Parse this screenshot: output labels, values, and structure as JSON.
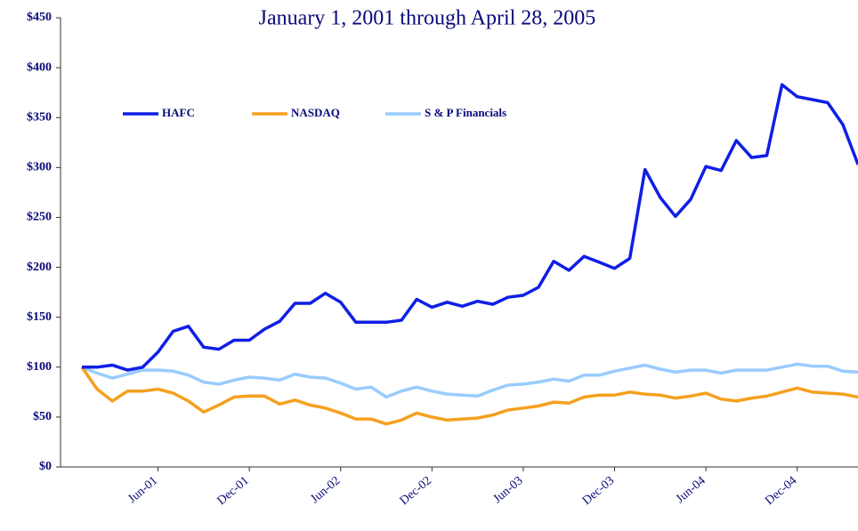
{
  "chart_data": {
    "type": "line",
    "title": "January 1, 2001 through April 28, 2005",
    "categories": [
      null,
      null,
      null,
      null,
      null,
      "Jun-01",
      null,
      null,
      null,
      null,
      null,
      "Dec-01",
      null,
      null,
      null,
      null,
      null,
      "Jun-02",
      null,
      null,
      null,
      null,
      null,
      "Dec-02",
      null,
      null,
      null,
      null,
      null,
      "Jun-03",
      null,
      null,
      null,
      null,
      null,
      "Dec-03",
      null,
      null,
      null,
      null,
      null,
      "Jun-04",
      null,
      null,
      null,
      null,
      null,
      "Dec-04",
      null,
      null,
      null,
      null
    ],
    "series": [
      {
        "name": "HAFC",
        "color": "#0f1ee6",
        "values": [
          100,
          100,
          102,
          97,
          100,
          115,
          136,
          141,
          120,
          118,
          127,
          127,
          138,
          146,
          164,
          164,
          174,
          165,
          145,
          145,
          145,
          147,
          168,
          160,
          165,
          161,
          166,
          163,
          170,
          172,
          180,
          206,
          197,
          211,
          205,
          199,
          209,
          298,
          270,
          251,
          268,
          301,
          297,
          327,
          310,
          312,
          383,
          371,
          368,
          365,
          343,
          303
        ]
      },
      {
        "name": "NASDAQ",
        "color": "#f5a01e",
        "values": [
          100,
          78,
          66,
          76,
          76,
          78,
          74,
          66,
          55,
          62,
          70,
          71,
          71,
          63,
          67,
          62,
          59,
          54,
          48,
          48,
          43,
          47,
          54,
          50,
          47,
          48,
          49,
          52,
          57,
          59,
          61,
          65,
          64,
          70,
          72,
          72,
          75,
          73,
          72,
          69,
          71,
          74,
          68,
          66,
          69,
          71,
          75,
          79,
          75,
          74,
          73,
          70
        ]
      },
      {
        "name": "S & P Financials",
        "color": "#99ccff",
        "values": [
          100,
          94,
          89,
          93,
          97,
          97,
          96,
          92,
          85,
          83,
          87,
          90,
          89,
          87,
          93,
          90,
          89,
          84,
          78,
          80,
          70,
          76,
          80,
          76,
          73,
          72,
          71,
          77,
          82,
          83,
          85,
          88,
          86,
          92,
          92,
          96,
          99,
          102,
          98,
          95,
          97,
          97,
          94,
          97,
          97,
          97,
          100,
          103,
          101,
          101,
          96,
          95
        ]
      }
    ],
    "ylim": [
      0,
      450
    ],
    "yticks": [
      {
        "value": 0,
        "label": "$0"
      },
      {
        "value": 50,
        "label": "$50"
      },
      {
        "value": 100,
        "label": "$100"
      },
      {
        "value": 150,
        "label": "$150"
      },
      {
        "value": 200,
        "label": "$200"
      },
      {
        "value": 250,
        "label": "$250"
      },
      {
        "value": 300,
        "label": "$300"
      },
      {
        "value": 350,
        "label": "$350"
      },
      {
        "value": 400,
        "label": "$400"
      },
      {
        "value": 450,
        "label": "$450"
      }
    ],
    "legend": "upper left"
  }
}
